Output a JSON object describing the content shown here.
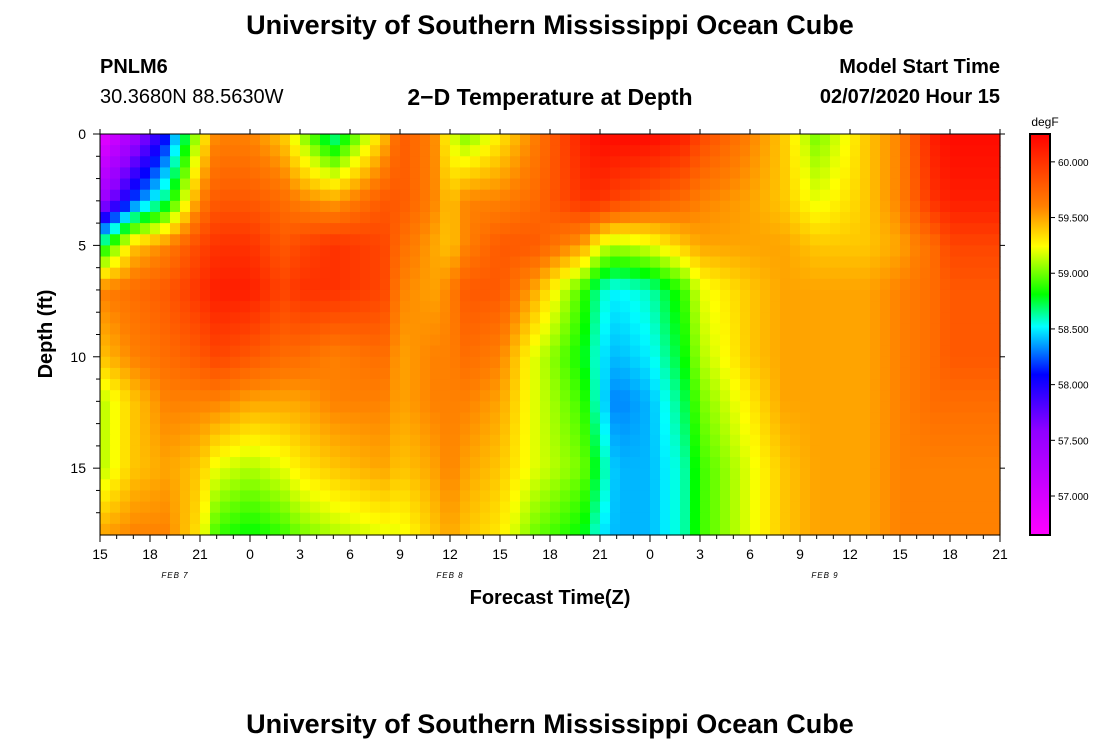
{
  "header": {
    "title": "University of Southern Mississippi Ocean Cube",
    "station": "PNLM6",
    "coords": "30.3680N 88.5630W",
    "plot_title": "2−D Temperature at Depth",
    "model_label": "Model Start Time",
    "model_time": "02/07/2020 Hour 15"
  },
  "footer": {
    "title": "University of Southern Mississippi Ocean Cube"
  },
  "chart_data": {
    "type": "heatmap",
    "title": "2−D Temperature at Depth",
    "xlabel": "Forecast Time(Z)",
    "ylabel": "Depth (ft)",
    "x_tick_labels": [
      "15",
      "18",
      "21",
      "0",
      "3",
      "6",
      "9",
      "12",
      "15",
      "18",
      "21",
      "0",
      "3",
      "6",
      "9",
      "12",
      "15",
      "18",
      "21"
    ],
    "x_hours_from_start": [
      0,
      3,
      6,
      9,
      12,
      15,
      18,
      21,
      24,
      27,
      30,
      33,
      36,
      39,
      42,
      45,
      48,
      51,
      54
    ],
    "date_labels": [
      {
        "label": "FEB 7",
        "hour": 4.5
      },
      {
        "label": "FEB 8",
        "hour": 21
      },
      {
        "label": "FEB 9",
        "hour": 43.5
      }
    ],
    "y_tick_labels": [
      "0",
      "5",
      "10",
      "15"
    ],
    "y_ticks": [
      0,
      5,
      10,
      15
    ],
    "ylim": [
      0,
      18
    ],
    "xlim": [
      0,
      54
    ],
    "colorbar": {
      "unit": "degF",
      "min": 56.65,
      "max": 60.25,
      "tick_values": [
        57.0,
        57.5,
        58.0,
        58.5,
        59.0,
        59.5,
        60.0
      ],
      "tick_labels": [
        "57.000",
        "57.500",
        "58.000",
        "58.500",
        "59.000",
        "59.500",
        "60.000"
      ]
    },
    "depths_ft": [
      0,
      3,
      5,
      7,
      10,
      12,
      15,
      18
    ],
    "times_h": [
      0,
      2,
      4,
      6,
      7,
      9,
      11,
      12,
      14,
      17,
      18,
      20,
      21,
      22,
      24,
      26,
      29,
      30,
      31,
      33,
      35,
      36,
      39,
      41,
      43,
      46,
      48,
      50,
      51,
      54
    ],
    "temperature_degF": [
      [
        56.8,
        57.4,
        58.1,
        59.2,
        59.6,
        59.6,
        59.4,
        59.1,
        58.6,
        59.4,
        59.8,
        59.6,
        59.2,
        59.0,
        59.3,
        59.6,
        60.1,
        60.2,
        60.2,
        60.2,
        60.1,
        59.9,
        59.6,
        59.4,
        59.0,
        59.4,
        59.6,
        60.1,
        60.2,
        60.2
      ],
      [
        57.4,
        58.2,
        58.7,
        59.6,
        59.8,
        59.8,
        59.7,
        59.6,
        59.5,
        59.8,
        59.8,
        59.6,
        59.4,
        59.6,
        59.6,
        59.7,
        60.0,
        60.0,
        59.9,
        59.8,
        59.7,
        59.6,
        59.5,
        59.4,
        59.2,
        59.4,
        59.6,
        60.0,
        60.1,
        60.1
      ],
      [
        58.7,
        59.4,
        59.6,
        59.9,
        60.0,
        60.0,
        59.8,
        59.9,
        60.0,
        59.9,
        59.7,
        59.5,
        59.4,
        59.6,
        59.8,
        59.8,
        59.5,
        59.2,
        59.1,
        59.2,
        59.4,
        59.5,
        59.5,
        59.5,
        59.4,
        59.4,
        59.5,
        59.7,
        59.9,
        59.9
      ],
      [
        59.6,
        59.7,
        59.8,
        60.0,
        60.1,
        60.1,
        59.9,
        60.0,
        60.0,
        59.9,
        59.6,
        59.5,
        59.6,
        59.8,
        59.8,
        59.5,
        58.9,
        58.6,
        58.5,
        58.6,
        58.9,
        59.2,
        59.4,
        59.5,
        59.5,
        59.5,
        59.6,
        59.7,
        59.8,
        59.8
      ],
      [
        59.4,
        59.6,
        59.7,
        59.8,
        59.9,
        59.8,
        59.7,
        59.7,
        59.6,
        59.7,
        59.5,
        59.6,
        59.6,
        59.7,
        59.6,
        59.2,
        58.8,
        58.5,
        58.4,
        58.5,
        58.8,
        59.1,
        59.4,
        59.5,
        59.5,
        59.5,
        59.6,
        59.7,
        59.8,
        59.8
      ],
      [
        59.1,
        59.4,
        59.6,
        59.6,
        59.6,
        59.5,
        59.5,
        59.5,
        59.6,
        59.6,
        59.5,
        59.6,
        59.6,
        59.6,
        59.5,
        59.2,
        58.9,
        58.5,
        58.3,
        58.4,
        58.7,
        59.0,
        59.3,
        59.5,
        59.5,
        59.5,
        59.6,
        59.7,
        59.7,
        59.7
      ],
      [
        59.1,
        59.4,
        59.5,
        59.4,
        59.2,
        59.1,
        59.2,
        59.3,
        59.4,
        59.5,
        59.4,
        59.5,
        59.6,
        59.5,
        59.4,
        59.2,
        59.0,
        58.7,
        58.4,
        58.4,
        58.6,
        58.9,
        59.2,
        59.4,
        59.5,
        59.5,
        59.6,
        59.6,
        59.6,
        59.6
      ],
      [
        59.5,
        59.6,
        59.6,
        59.3,
        58.9,
        58.8,
        58.9,
        59.0,
        59.1,
        59.2,
        59.2,
        59.4,
        59.5,
        59.4,
        59.3,
        59.0,
        58.8,
        58.5,
        58.4,
        58.4,
        58.6,
        58.9,
        59.2,
        59.4,
        59.5,
        59.5,
        59.6,
        59.6,
        59.6,
        59.6
      ]
    ]
  }
}
